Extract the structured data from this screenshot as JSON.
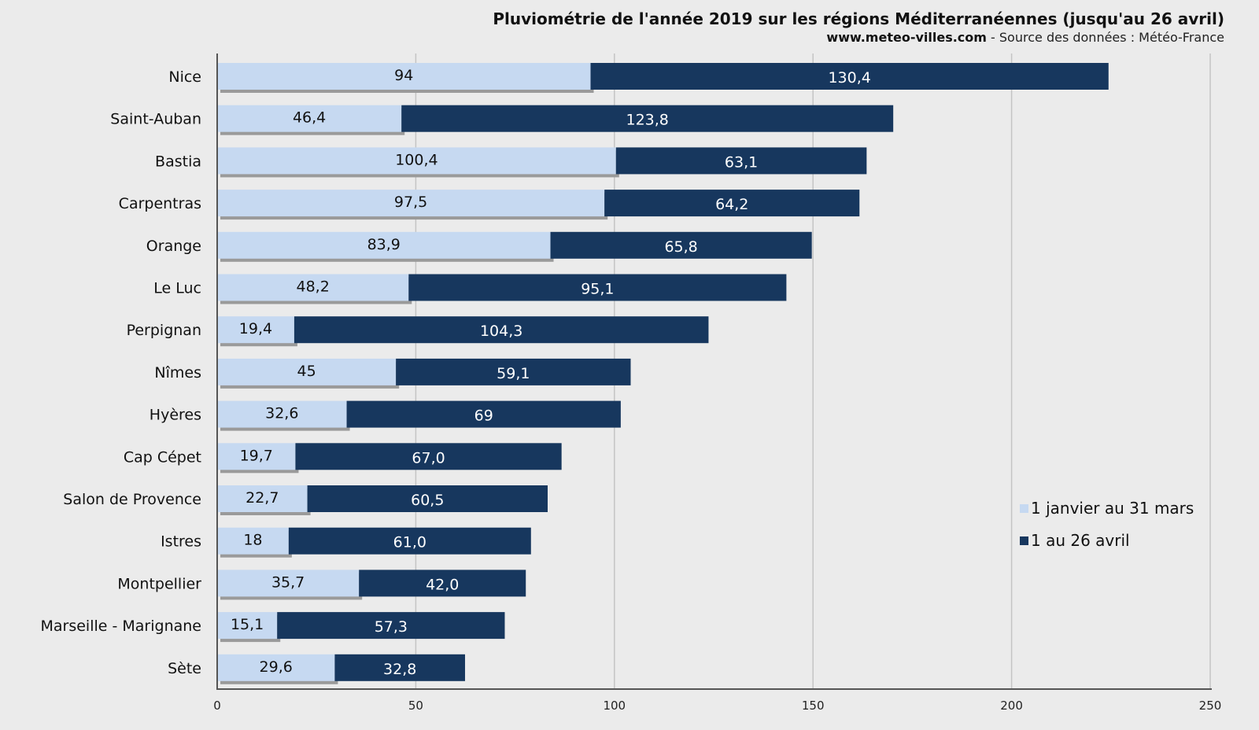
{
  "chart_data": {
    "type": "bar",
    "orientation": "horizontal",
    "stacked": true,
    "title": "Pluviométrie de l'année 2019 sur les régions Méditerranéennes (jusqu'au 26 avril)",
    "subtitle_site": "www.meteo-villes.com",
    "subtitle_source": " - Source des données : Météo-France",
    "categories": [
      "Nice",
      "Saint-Auban",
      "Bastia",
      "Carpentras",
      "Orange",
      "Le Luc",
      "Perpignan",
      "Nîmes",
      "Hyères",
      "Cap Cépet",
      "Salon de Provence",
      "Istres",
      "Montpellier",
      "Marseille - Marignane",
      "Sète"
    ],
    "series": [
      {
        "name": "1 janvier au 31 mars",
        "color": "#c6d9f1",
        "values": [
          94,
          46.4,
          100.4,
          97.5,
          83.9,
          48.2,
          19.4,
          45,
          32.6,
          19.7,
          22.7,
          18,
          35.7,
          15.1,
          29.6
        ],
        "labels": [
          "94",
          "46,4",
          "100,4",
          "97,5",
          "83,9",
          "48,2",
          "19,4",
          "45",
          "32,6",
          "19,7",
          "22,7",
          "18",
          "35,7",
          "15,1",
          "29,6"
        ]
      },
      {
        "name": "1 au 26 avril",
        "color": "#17375e",
        "values": [
          130.4,
          123.8,
          63.1,
          64.2,
          65.8,
          95.1,
          104.3,
          59.1,
          69,
          67.0,
          60.5,
          61.0,
          42.0,
          57.3,
          32.8
        ],
        "labels": [
          "130,4",
          "123,8",
          "63,1",
          "64,2",
          "65,8",
          "95,1",
          "104,3",
          "59,1",
          "69",
          "67,0",
          "60,5",
          "61,0",
          "42,0",
          "57,3",
          "32,8"
        ]
      }
    ],
    "xlim": [
      0,
      250
    ],
    "xticks": [
      "0",
      "50",
      "100",
      "150",
      "200",
      "250"
    ],
    "grid": true,
    "legend_position": "right"
  }
}
